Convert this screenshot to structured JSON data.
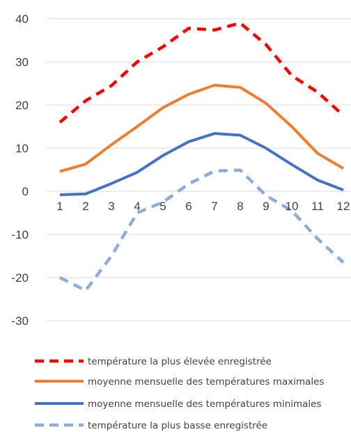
{
  "chart_data": {
    "type": "line",
    "x": [
      1,
      2,
      3,
      4,
      5,
      6,
      7,
      8,
      9,
      10,
      11,
      12
    ],
    "ylim": [
      -30,
      40
    ],
    "yticks": [
      40,
      30,
      20,
      10,
      0,
      -10,
      -20,
      -30
    ],
    "grid": true,
    "legend_position": "bottom",
    "series": [
      {
        "name": "température la plus élevée enregistrée",
        "values": [
          16,
          21,
          24.5,
          30,
          33.5,
          37.8,
          37.4,
          39,
          34,
          26.8,
          23,
          17.6
        ],
        "color": "#ff0000",
        "style": "dashed"
      },
      {
        "name": "moyenne mensuelle des températures maximales",
        "values": [
          4.6,
          6.3,
          10.8,
          15,
          19.4,
          22.5,
          24.6,
          24.1,
          20.4,
          15,
          8.8,
          5.3
        ],
        "color": "#ed7d31",
        "style": "solid"
      },
      {
        "name": "moyenne mensuelle des températures minimales",
        "values": [
          -0.8,
          -0.6,
          1.8,
          4.4,
          8.3,
          11.5,
          13.4,
          13,
          10,
          6.2,
          2.6,
          0.3
        ],
        "color": "#4472c4",
        "style": "solid"
      },
      {
        "name": "température la plus basse enregistrée",
        "values": [
          -20,
          -23,
          -15,
          -5,
          -2.5,
          1.7,
          4.7,
          4.9,
          -1,
          -4.5,
          -11,
          -16.5
        ],
        "color": "#8faadc",
        "style": "dashed"
      }
    ]
  }
}
